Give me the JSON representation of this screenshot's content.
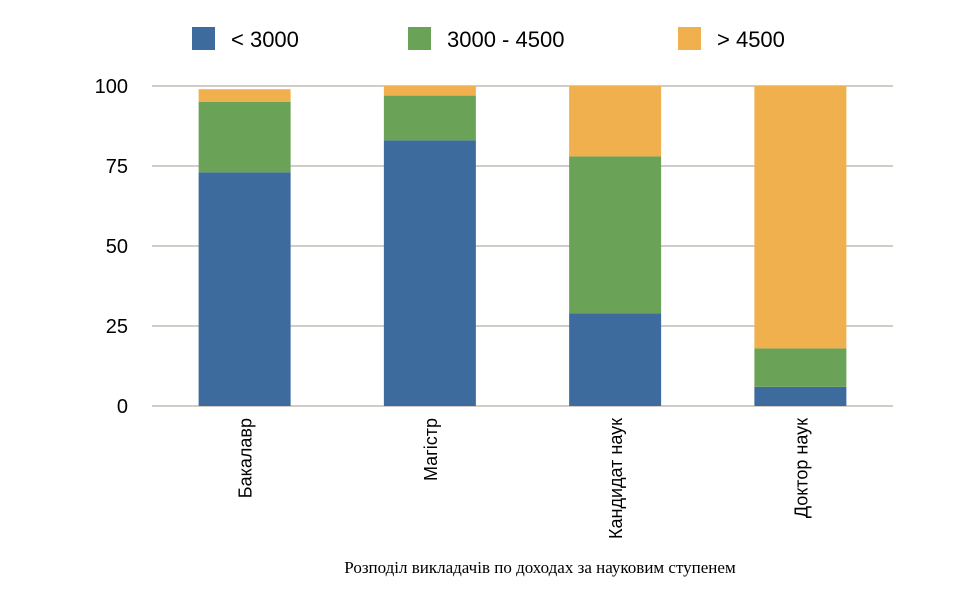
{
  "chart_data": {
    "type": "bar",
    "stacked": true,
    "categories": [
      "Бакалавр",
      "Магістр",
      "Кандидат наук",
      "Доктор наук"
    ],
    "series": [
      {
        "name": "< 3000",
        "color": "#3d6b9e",
        "values": [
          73,
          83,
          29,
          6
        ]
      },
      {
        "name": "3000 - 4500",
        "color": "#6aa358",
        "values": [
          22,
          14,
          49,
          12
        ]
      },
      {
        "name": "> 4500",
        "color": "#efb04d",
        "values": [
          4,
          3,
          22,
          82
        ]
      }
    ],
    "yticks": [
      0,
      25,
      50,
      75,
      100
    ],
    "ylim": [
      0,
      100
    ],
    "grid": true,
    "legend_position": "top",
    "xlabel": "Розподіл викладачів по доходах за науковим ступенем",
    "ylabel": ""
  }
}
